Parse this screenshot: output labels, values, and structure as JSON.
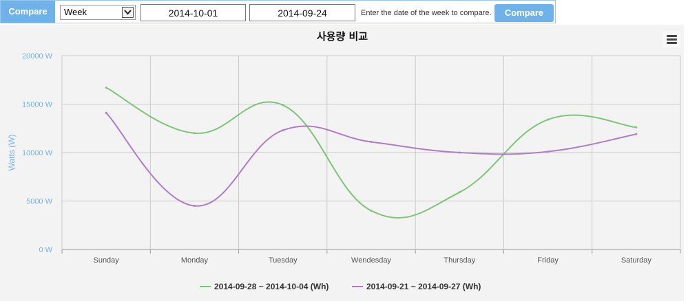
{
  "toolbar": {
    "label": "Compare",
    "period_select": "Week",
    "date_a": "2014-10-01",
    "date_b": "2014-09-24",
    "hint": "Enter the date of the week to compare.",
    "compare_button": "Compare"
  },
  "menu_icon": "hamburger-menu-icon",
  "chart_data": {
    "type": "line",
    "title": "사용량 비교",
    "ylabel": "Watts (W)",
    "xlabel": "",
    "categories": [
      "Sunday",
      "Monday",
      "Tuesday",
      "Wendesday",
      "Thursday",
      "Friday",
      "Saturday"
    ],
    "ylim": [
      0,
      20000
    ],
    "yticks": [
      "0 W",
      "5000 W",
      "10000 W",
      "15000 W",
      "20000 W"
    ],
    "ytick_values": [
      0,
      5000,
      10000,
      15000,
      20000
    ],
    "grid": true,
    "legend_position": "bottom",
    "series": [
      {
        "name": "2014-09-28 ~ 2014-10-04 (Wh)",
        "color": "#7cc576",
        "values": [
          16700,
          12000,
          14900,
          4000,
          5900,
          13400,
          12600
        ]
      },
      {
        "name": "2014-09-21 ~ 2014-09-27 (Wh)",
        "color": "#b07cc6",
        "values": [
          14100,
          4500,
          12300,
          11100,
          10000,
          10100,
          11900
        ]
      }
    ]
  }
}
